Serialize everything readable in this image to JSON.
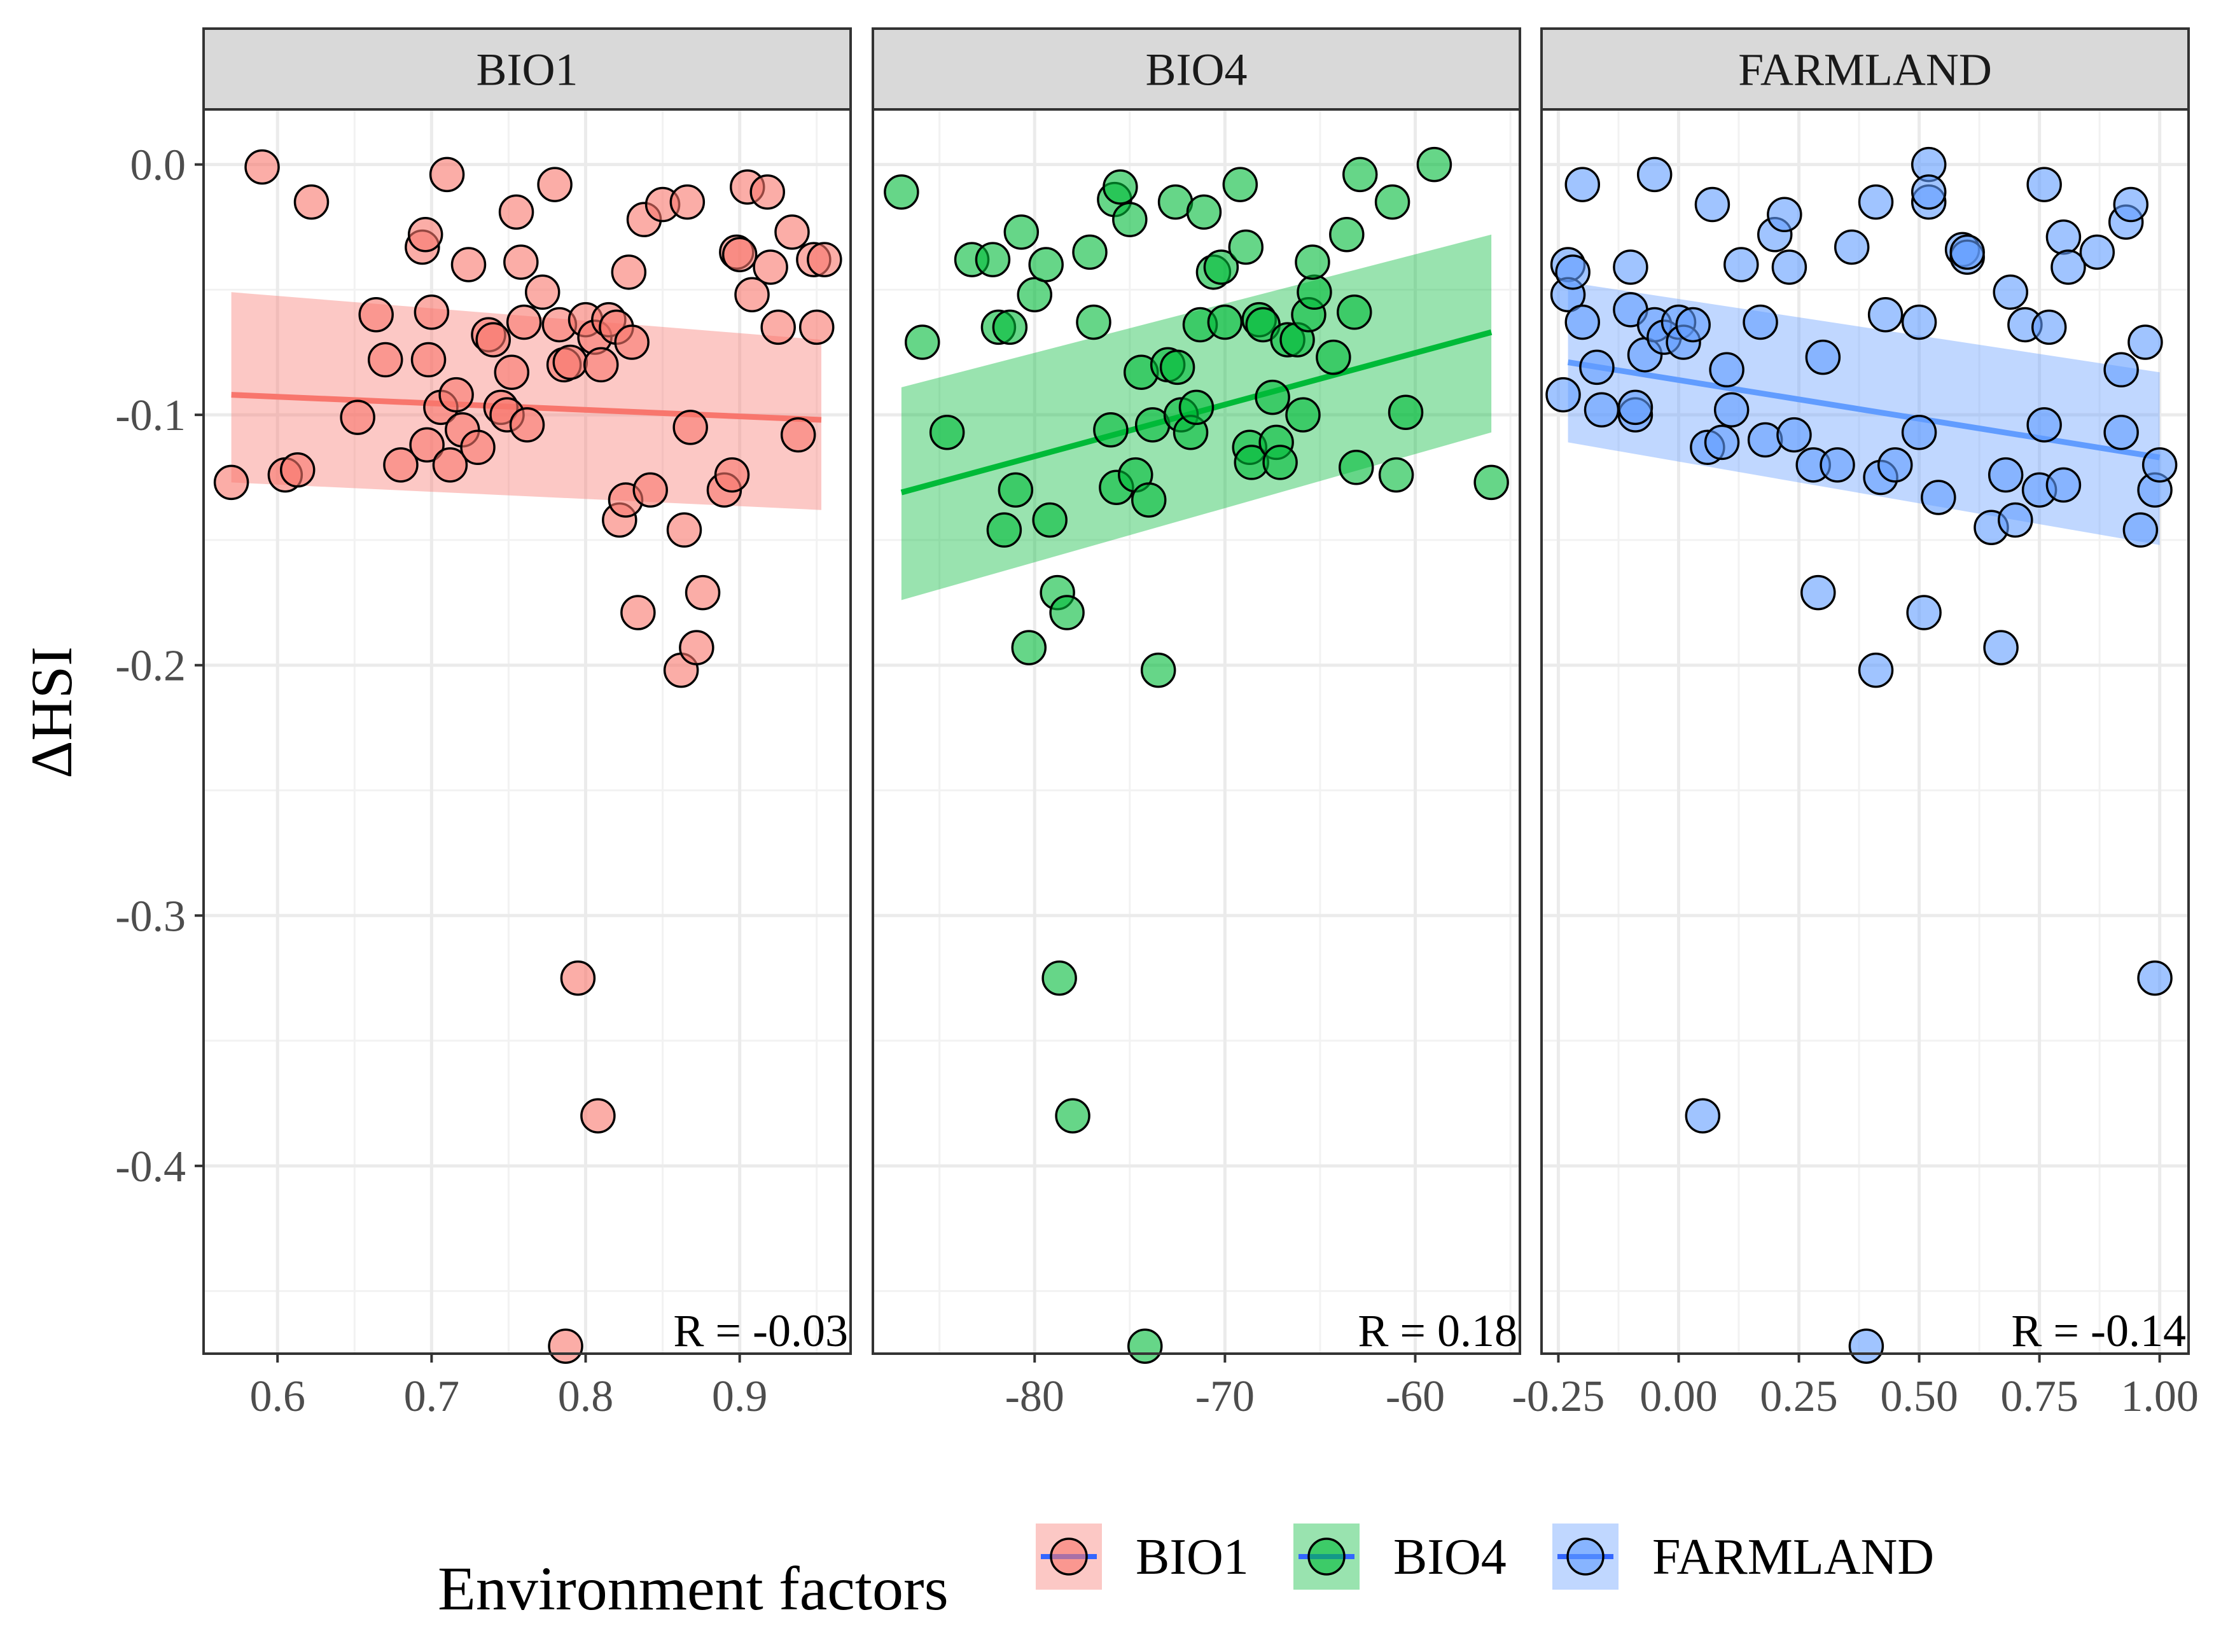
{
  "chart_data": {
    "type": "scatter",
    "ylabel": "ΔHSI",
    "ylim": [
      -0.475,
      0.022
    ],
    "y_ticks": [
      0.0,
      -0.1,
      -0.2,
      -0.3,
      -0.4
    ],
    "y_tick_labels": [
      "0.0",
      "-0.1",
      "-0.2",
      "-0.3",
      "-0.4"
    ],
    "legend": {
      "title": "Environment factors",
      "position": "bottom",
      "entries": [
        {
          "label": "BIO1",
          "color": "#F8766D"
        },
        {
          "label": "BIO4",
          "color": "#00BA38"
        },
        {
          "label": "FARMLAND",
          "color": "#619CFF"
        }
      ]
    },
    "line_color": "#3366FF",
    "facets": [
      {
        "name": "BIO1",
        "color": "#F8766D",
        "xlim": [
          0.552,
          0.972
        ],
        "x_ticks": [
          0.6,
          0.7,
          0.8,
          0.9
        ],
        "x_tick_labels": [
          "0.6",
          "0.7",
          "0.8",
          "0.9"
        ],
        "r_label": "R = -0.03",
        "fit": {
          "x": [
            0.57,
            0.953
          ],
          "y": [
            -0.092,
            -0.102
          ],
          "lower": [
            -0.127,
            -0.138
          ],
          "upper": [
            -0.051,
            -0.07
          ]
        },
        "points": [
          [
            0.59,
            -0.001
          ],
          [
            0.622,
            -0.015
          ],
          [
            0.71,
            -0.004
          ],
          [
            0.78,
            -0.008
          ],
          [
            0.57,
            -0.127
          ],
          [
            0.605,
            -0.124
          ],
          [
            0.613,
            -0.122
          ],
          [
            0.652,
            -0.101
          ],
          [
            0.664,
            -0.06
          ],
          [
            0.67,
            -0.078
          ],
          [
            0.68,
            -0.12
          ],
          [
            0.694,
            -0.033
          ],
          [
            0.696,
            -0.028
          ],
          [
            0.697,
            -0.112
          ],
          [
            0.698,
            -0.078
          ],
          [
            0.7,
            -0.059
          ],
          [
            0.706,
            -0.097
          ],
          [
            0.712,
            -0.12
          ],
          [
            0.716,
            -0.092
          ],
          [
            0.72,
            -0.106
          ],
          [
            0.724,
            -0.04
          ],
          [
            0.73,
            -0.113
          ],
          [
            0.737,
            -0.068
          ],
          [
            0.74,
            -0.07
          ],
          [
            0.745,
            -0.097
          ],
          [
            0.749,
            -0.1
          ],
          [
            0.752,
            -0.083
          ],
          [
            0.755,
            -0.019
          ],
          [
            0.758,
            -0.039
          ],
          [
            0.76,
            -0.063
          ],
          [
            0.762,
            -0.104
          ],
          [
            0.772,
            -0.051
          ],
          [
            0.783,
            -0.064
          ],
          [
            0.786,
            -0.08
          ],
          [
            0.79,
            -0.079
          ],
          [
            0.8,
            -0.062
          ],
          [
            0.806,
            -0.069
          ],
          [
            0.81,
            -0.08
          ],
          [
            0.815,
            -0.062
          ],
          [
            0.82,
            -0.065
          ],
          [
            0.822,
            -0.142
          ],
          [
            0.826,
            -0.134
          ],
          [
            0.828,
            -0.043
          ],
          [
            0.83,
            -0.071
          ],
          [
            0.834,
            -0.179
          ],
          [
            0.838,
            -0.022
          ],
          [
            0.842,
            -0.13
          ],
          [
            0.85,
            -0.016
          ],
          [
            0.862,
            -0.202
          ],
          [
            0.864,
            -0.146
          ],
          [
            0.866,
            -0.015
          ],
          [
            0.868,
            -0.105
          ],
          [
            0.872,
            -0.193
          ],
          [
            0.876,
            -0.171
          ],
          [
            0.89,
            -0.13
          ],
          [
            0.895,
            -0.124
          ],
          [
            0.898,
            -0.035
          ],
          [
            0.9,
            -0.036
          ],
          [
            0.905,
            -0.009
          ],
          [
            0.908,
            -0.052
          ],
          [
            0.918,
            -0.011
          ],
          [
            0.92,
            -0.041
          ],
          [
            0.925,
            -0.065
          ],
          [
            0.934,
            -0.027
          ],
          [
            0.938,
            -0.108
          ],
          [
            0.948,
            -0.038
          ],
          [
            0.95,
            -0.065
          ],
          [
            0.955,
            -0.038
          ],
          [
            0.795,
            -0.325
          ],
          [
            0.808,
            -0.38
          ],
          [
            0.787,
            -0.472
          ]
        ]
      },
      {
        "name": "BIO4",
        "color": "#00BA38",
        "xlim": [
          -88.5,
          -54.5
        ],
        "x_ticks": [
          -80,
          -70,
          -60
        ],
        "x_tick_labels": [
          "-80",
          "-70",
          "-60"
        ],
        "r_label": "R = 0.18",
        "fit": {
          "x": [
            -87,
            -56
          ],
          "y": [
            -0.131,
            -0.067
          ],
          "lower": [
            -0.174,
            -0.107
          ],
          "upper": [
            -0.089,
            -0.028
          ]
        },
        "points": [
          [
            -87,
            -0.011
          ],
          [
            -85.9,
            -0.071
          ],
          [
            -84.6,
            -0.107
          ],
          [
            -83.3,
            -0.038
          ],
          [
            -82.2,
            -0.038
          ],
          [
            -81.9,
            -0.065
          ],
          [
            -81.6,
            -0.146
          ],
          [
            -81.3,
            -0.065
          ],
          [
            -81,
            -0.13
          ],
          [
            -80.7,
            -0.027
          ],
          [
            -80.3,
            -0.193
          ],
          [
            -80,
            -0.052
          ],
          [
            -79.4,
            -0.04
          ],
          [
            -79.2,
            -0.142
          ],
          [
            -78.8,
            -0.171
          ],
          [
            -78.3,
            -0.179
          ],
          [
            -78,
            -0.38
          ],
          [
            -78.7,
            -0.325
          ],
          [
            -77.1,
            -0.035
          ],
          [
            -76.9,
            -0.063
          ],
          [
            -76,
            -0.106
          ],
          [
            -75.8,
            -0.014
          ],
          [
            -75.5,
            -0.009
          ],
          [
            -75.7,
            -0.129
          ],
          [
            -75,
            -0.022
          ],
          [
            -74.7,
            -0.124
          ],
          [
            -74.4,
            -0.083
          ],
          [
            -74,
            -0.134
          ],
          [
            -73.8,
            -0.104
          ],
          [
            -73.5,
            -0.202
          ],
          [
            -73,
            -0.08
          ],
          [
            -72.6,
            -0.015
          ],
          [
            -72.5,
            -0.081
          ],
          [
            -72.3,
            -0.1
          ],
          [
            -71.8,
            -0.107
          ],
          [
            -71.5,
            -0.097
          ],
          [
            -71.3,
            -0.064
          ],
          [
            -71.1,
            -0.019
          ],
          [
            -70.6,
            -0.043
          ],
          [
            -70.2,
            -0.041
          ],
          [
            -70,
            -0.063
          ],
          [
            -69.2,
            -0.008
          ],
          [
            -68.9,
            -0.033
          ],
          [
            -68.7,
            -0.113
          ],
          [
            -68.6,
            -0.119
          ],
          [
            -68.2,
            -0.062
          ],
          [
            -68,
            -0.064
          ],
          [
            -67.5,
            -0.093
          ],
          [
            -67.3,
            -0.111
          ],
          [
            -67.1,
            -0.119
          ],
          [
            -66.7,
            -0.07
          ],
          [
            -66.2,
            -0.07
          ],
          [
            -65.9,
            -0.1
          ],
          [
            -65.6,
            -0.06
          ],
          [
            -65.3,
            -0.051
          ],
          [
            -65.4,
            -0.039
          ],
          [
            -64.3,
            -0.077
          ],
          [
            -63.6,
            -0.028
          ],
          [
            -63.1,
            -0.121
          ],
          [
            -63.2,
            -0.059
          ],
          [
            -62.9,
            -0.004
          ],
          [
            -61.2,
            -0.015
          ],
          [
            -61,
            -0.124
          ],
          [
            -60.5,
            -0.099
          ],
          [
            -59,
            0.0
          ],
          [
            -56,
            -0.127
          ],
          [
            -74.2,
            -0.472
          ]
        ]
      },
      {
        "name": "FARMLAND",
        "color": "#619CFF",
        "xlim": [
          -0.285,
          1.06
        ],
        "x_ticks": [
          -0.25,
          0.0,
          0.25,
          0.5,
          0.75,
          1.0
        ],
        "x_tick_labels": [
          "-0.25",
          "0.00",
          "0.25",
          "0.50",
          "0.75",
          "1.00"
        ],
        "r_label": "R = -0.14",
        "fit": {
          "x": [
            -0.23,
            1.0
          ],
          "y": [
            -0.079,
            -0.117
          ],
          "lower": [
            -0.111,
            -0.152
          ],
          "upper": [
            -0.047,
            -0.083
          ]
        },
        "points": [
          [
            -0.24,
            -0.092
          ],
          [
            -0.23,
            -0.04
          ],
          [
            -0.23,
            -0.052
          ],
          [
            -0.22,
            -0.043
          ],
          [
            -0.2,
            -0.008
          ],
          [
            -0.2,
            -0.063
          ],
          [
            -0.17,
            -0.081
          ],
          [
            -0.16,
            -0.098
          ],
          [
            -0.1,
            -0.041
          ],
          [
            -0.1,
            -0.058
          ],
          [
            -0.09,
            -0.1
          ],
          [
            -0.09,
            -0.097
          ],
          [
            -0.07,
            -0.076
          ],
          [
            -0.05,
            -0.064
          ],
          [
            -0.05,
            -0.004
          ],
          [
            -0.03,
            -0.069
          ],
          [
            0.0,
            -0.063
          ],
          [
            0.01,
            -0.071
          ],
          [
            0.03,
            -0.064
          ],
          [
            0.05,
            -0.38
          ],
          [
            0.07,
            -0.016
          ],
          [
            0.06,
            -0.113
          ],
          [
            0.09,
            -0.111
          ],
          [
            0.1,
            -0.082
          ],
          [
            0.11,
            -0.098
          ],
          [
            0.13,
            -0.04
          ],
          [
            0.17,
            -0.063
          ],
          [
            0.18,
            -0.11
          ],
          [
            0.2,
            -0.028
          ],
          [
            0.22,
            -0.02
          ],
          [
            0.23,
            -0.041
          ],
          [
            0.24,
            -0.108
          ],
          [
            0.28,
            -0.12
          ],
          [
            0.3,
            -0.077
          ],
          [
            0.29,
            -0.171
          ],
          [
            0.33,
            -0.12
          ],
          [
            0.36,
            -0.033
          ],
          [
            0.39,
            -0.472
          ],
          [
            0.41,
            -0.202
          ],
          [
            0.41,
            -0.015
          ],
          [
            0.42,
            -0.125
          ],
          [
            0.43,
            -0.06
          ],
          [
            0.45,
            -0.12
          ],
          [
            0.5,
            -0.063
          ],
          [
            0.5,
            -0.107
          ],
          [
            0.51,
            -0.179
          ],
          [
            0.52,
            -0.015
          ],
          [
            0.52,
            0.0
          ],
          [
            0.52,
            -0.011
          ],
          [
            0.54,
            -0.133
          ],
          [
            0.59,
            -0.034
          ],
          [
            0.6,
            -0.037
          ],
          [
            0.6,
            -0.035
          ],
          [
            0.65,
            -0.145
          ],
          [
            0.67,
            -0.193
          ],
          [
            0.68,
            -0.124
          ],
          [
            0.69,
            -0.051
          ],
          [
            0.7,
            -0.142
          ],
          [
            0.72,
            -0.064
          ],
          [
            0.75,
            -0.13
          ],
          [
            0.76,
            -0.104
          ],
          [
            0.76,
            -0.008
          ],
          [
            0.77,
            -0.065
          ],
          [
            0.8,
            -0.128
          ],
          [
            0.8,
            -0.029
          ],
          [
            0.81,
            -0.041
          ],
          [
            0.87,
            -0.035
          ],
          [
            0.92,
            -0.107
          ],
          [
            0.92,
            -0.082
          ],
          [
            0.93,
            -0.023
          ],
          [
            0.94,
            -0.016
          ],
          [
            0.96,
            -0.146
          ],
          [
            0.97,
            -0.071
          ],
          [
            0.99,
            -0.325
          ],
          [
            0.99,
            -0.13
          ],
          [
            1.0,
            -0.12
          ]
        ]
      }
    ]
  }
}
